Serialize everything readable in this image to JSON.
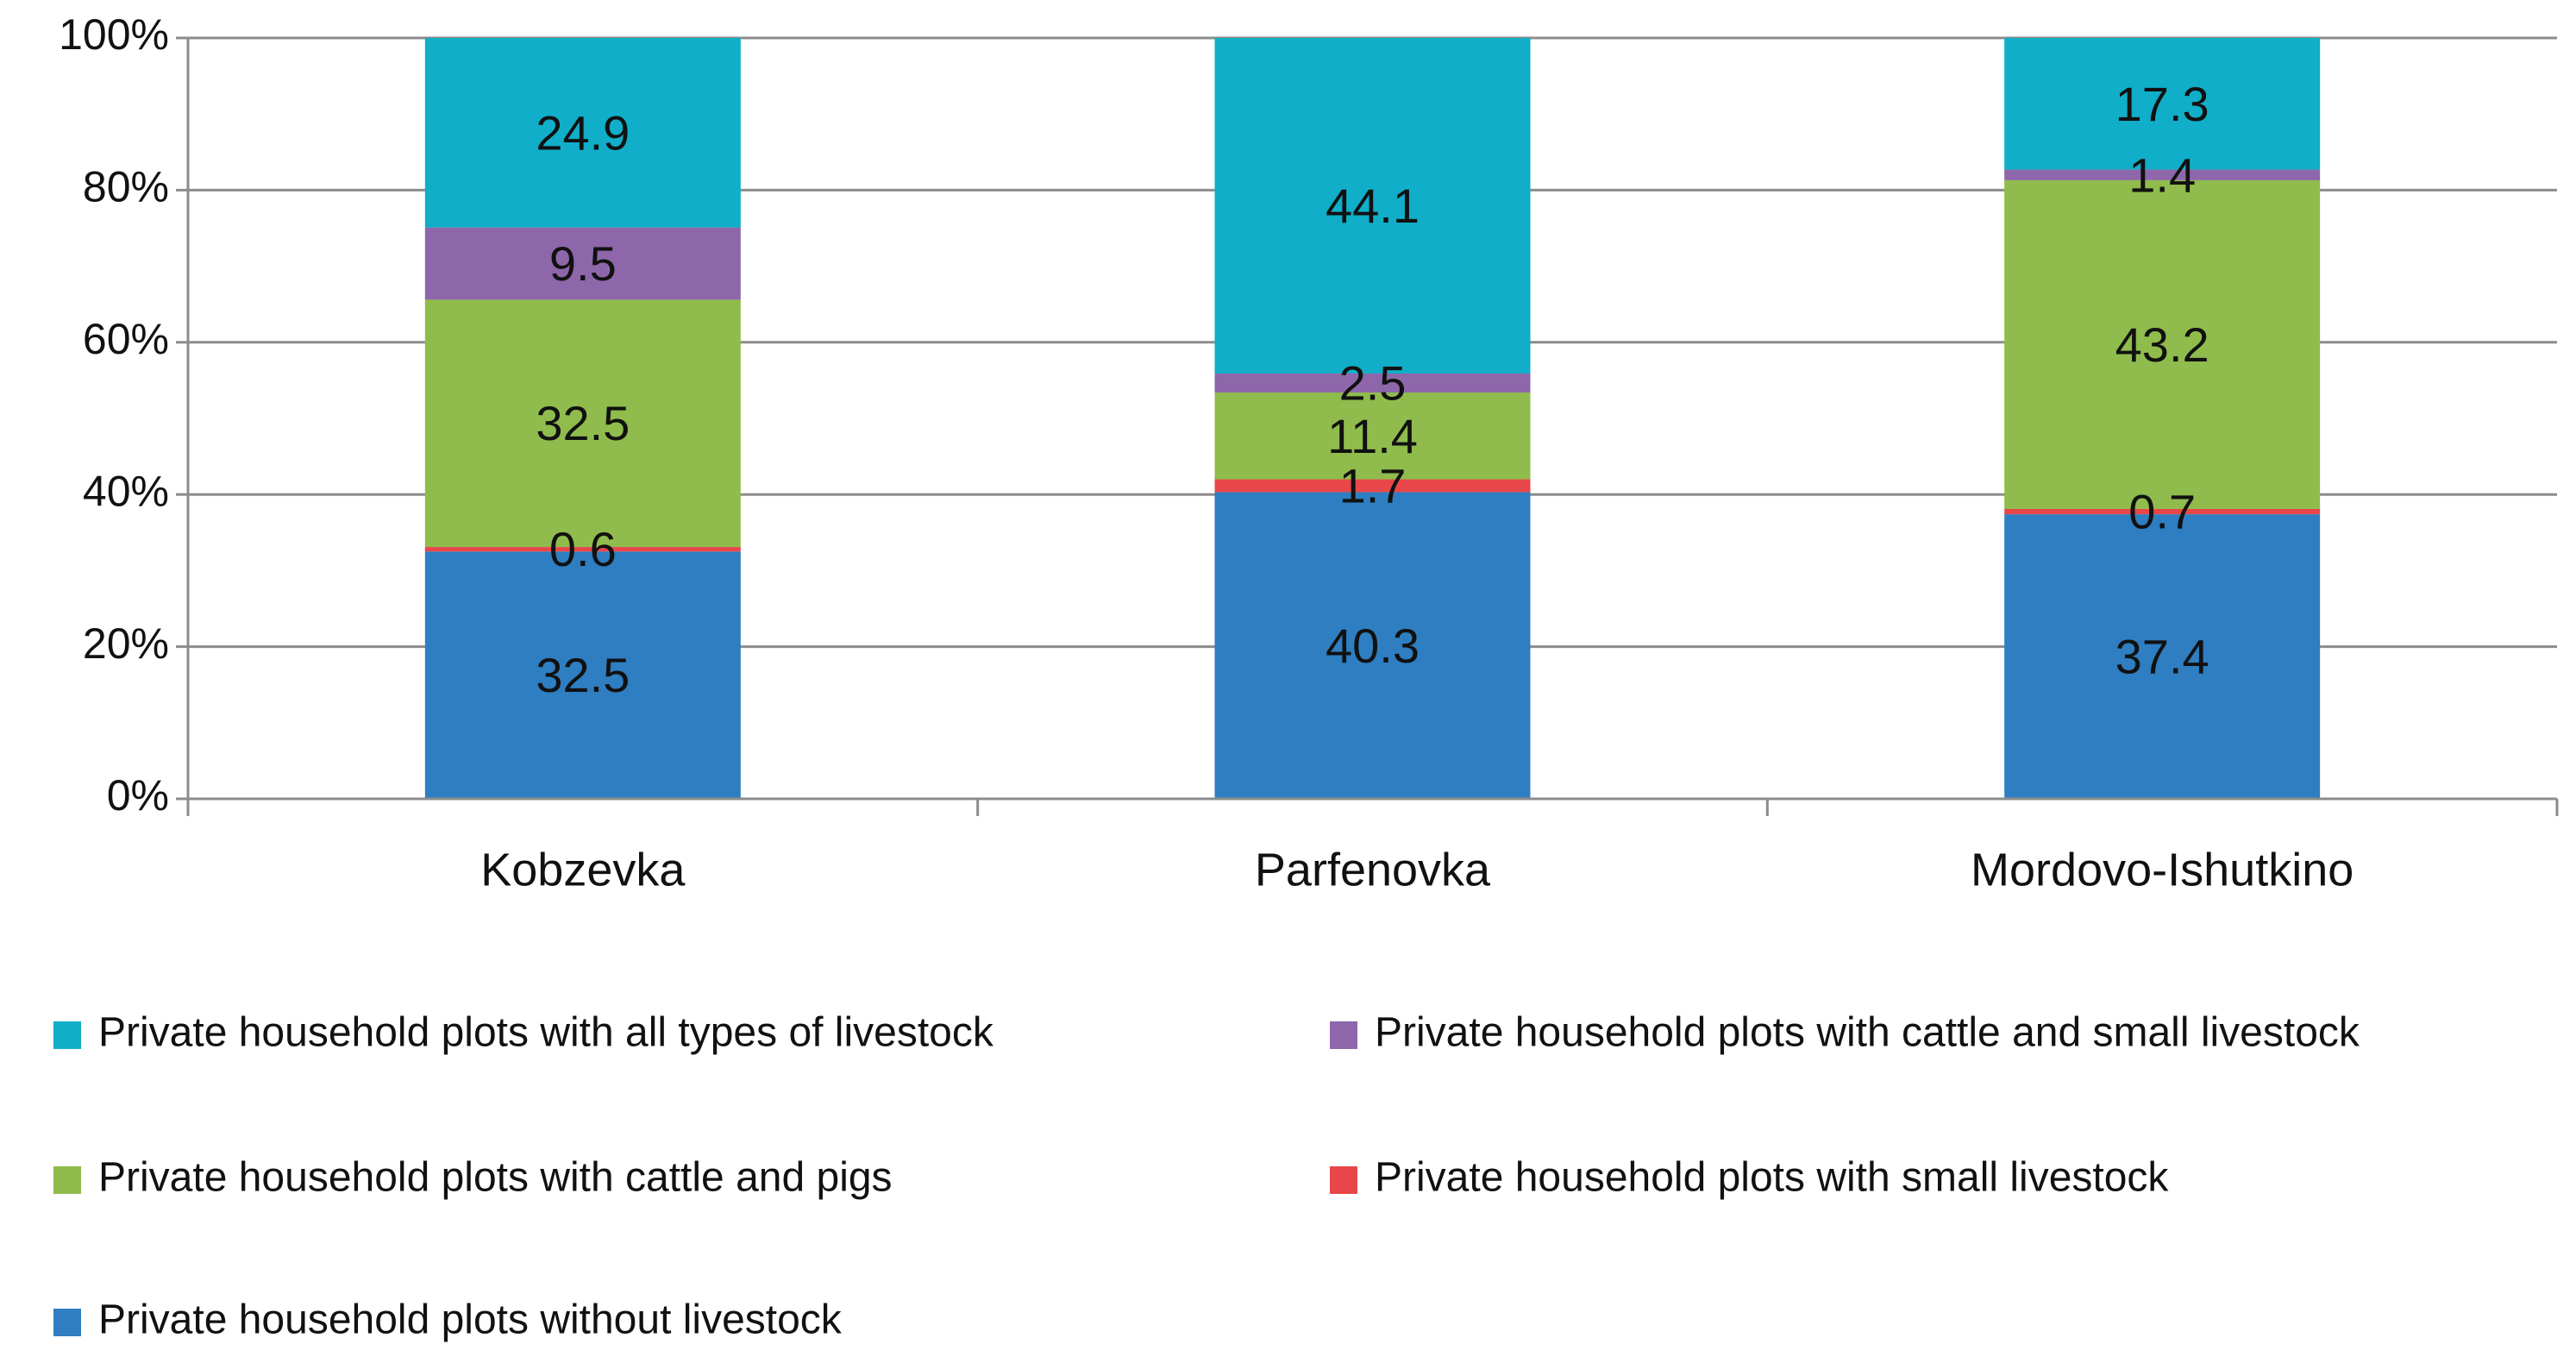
{
  "chart_data": {
    "type": "bar",
    "stacking": "percent",
    "title": "",
    "xlabel": "",
    "ylabel": "",
    "ylim": [
      0,
      100
    ],
    "y_ticks": [
      "0%",
      "20%",
      "40%",
      "60%",
      "80%",
      "100%"
    ],
    "grid": true,
    "legend_position": "bottom",
    "categories": [
      "Kobzevka",
      "Parfenovka",
      "Mordovo-Ishutkino"
    ],
    "series": [
      {
        "name": "Private household plots without livestock",
        "color": "#2e7ec1",
        "values": [
          32.5,
          40.3,
          37.4
        ]
      },
      {
        "name": "Private household plots with small livestock",
        "color": "#e8474a",
        "values": [
          0.6,
          1.7,
          0.7
        ]
      },
      {
        "name": "Private household plots with cattle and pigs",
        "color": "#8fbc4c",
        "values": [
          32.5,
          11.4,
          43.2
        ]
      },
      {
        "name": "Private household plots with cattle and small livestock",
        "color": "#8e67ab",
        "values": [
          9.5,
          2.5,
          1.4
        ]
      },
      {
        "name": "Private household plots with all types of livestock",
        "color": "#10aec8",
        "values": [
          24.9,
          44.1,
          17.3
        ]
      }
    ],
    "data_labels": [
      [
        "32.5",
        "40.3",
        "37.4"
      ],
      [
        "0.6",
        "1.7",
        "0.7"
      ],
      [
        "32.5",
        "11.4",
        "43.2"
      ],
      [
        "9.5",
        "2.5",
        "1.4"
      ],
      [
        "24.9",
        "44.1",
        "17.3"
      ]
    ],
    "legend_order": [
      4,
      3,
      2,
      1,
      0
    ]
  }
}
